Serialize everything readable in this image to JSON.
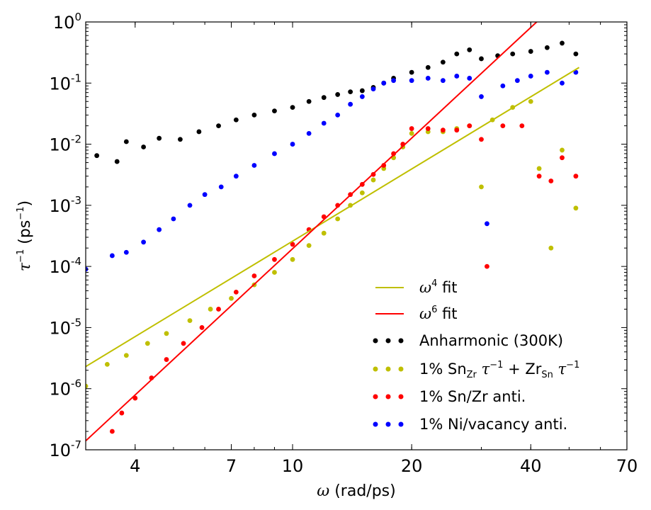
{
  "chart_data": {
    "type": "scatter",
    "xscale": "log",
    "yscale": "log",
    "xlim": [
      3,
      70
    ],
    "ylim": [
      1e-07,
      1
    ],
    "xlabel": "ω (rad/ps)",
    "ylabel": "τ⁻¹ (ps⁻¹)",
    "x_ticks": [
      4,
      7,
      10,
      20,
      40,
      70
    ],
    "x_tick_labels": [
      "4",
      "7",
      "10",
      "20",
      "40",
      "70"
    ],
    "y_ticks": [
      1e-07,
      1e-06,
      1e-05,
      0.0001,
      0.001,
      0.01,
      0.1,
      1
    ],
    "y_tick_labels": [
      {
        "base": "10",
        "exp": "-7"
      },
      {
        "base": "10",
        "exp": "-6"
      },
      {
        "base": "10",
        "exp": "-5"
      },
      {
        "base": "10",
        "exp": "-4"
      },
      {
        "base": "10",
        "exp": "-3"
      },
      {
        "base": "10",
        "exp": "-2"
      },
      {
        "base": "10",
        "exp": "-1"
      },
      {
        "base": "10",
        "exp": "0"
      }
    ],
    "grid": false,
    "legend_position": "lower-right",
    "series": [
      {
        "name": "ω⁴ fit",
        "kind": "line",
        "color": "#bfbf00",
        "x": [
          3.0,
          53.0
        ],
        "y": [
          2.3e-06,
          0.18
        ]
      },
      {
        "name": "ω⁶ fit",
        "kind": "line",
        "color": "#ff0000",
        "x": [
          3.0,
          45.0
        ],
        "y": [
          1.4e-07,
          1.65
        ]
      },
      {
        "name": "Anharmonic (300K)",
        "kind": "scatter",
        "color": "#000000",
        "x": [
          3.2,
          3.6,
          3.8,
          4.2,
          4.6,
          5.2,
          5.8,
          6.5,
          7.2,
          8.0,
          9.0,
          10.0,
          11.0,
          12.0,
          13.0,
          14.0,
          15.0,
          16.0,
          17.0,
          18.0,
          20.0,
          22.0,
          24.0,
          26.0,
          28.0,
          30.0,
          33.0,
          36.0,
          40.0,
          44.0,
          48.0,
          52.0
        ],
        "y": [
          0.0065,
          0.0052,
          0.011,
          0.009,
          0.0125,
          0.012,
          0.016,
          0.02,
          0.025,
          0.03,
          0.035,
          0.04,
          0.05,
          0.058,
          0.065,
          0.072,
          0.075,
          0.085,
          0.1,
          0.12,
          0.15,
          0.18,
          0.22,
          0.3,
          0.35,
          0.25,
          0.28,
          0.3,
          0.33,
          0.38,
          0.45,
          0.3
        ]
      },
      {
        "name": "1% Sn_Zr τ⁻¹ + Zr_Sn τ⁻¹",
        "kind": "scatter",
        "color": "#bfbf00",
        "x": [
          3.0,
          3.4,
          3.8,
          4.3,
          4.8,
          5.5,
          6.2,
          7.0,
          8.0,
          9.0,
          10.0,
          11.0,
          12.0,
          13.0,
          14.0,
          15.0,
          16.0,
          17.0,
          18.0,
          19.0,
          20.0,
          22.0,
          24.0,
          26.0,
          28.0,
          30.0,
          32.0,
          36.0,
          40.0,
          42.0,
          45.0,
          48.0,
          52.0
        ],
        "y": [
          1.1e-06,
          2.5e-06,
          3.5e-06,
          5.5e-06,
          8e-06,
          1.3e-05,
          2e-05,
          3e-05,
          5e-05,
          8e-05,
          0.00013,
          0.00022,
          0.00035,
          0.0006,
          0.001,
          0.0016,
          0.0026,
          0.004,
          0.006,
          0.009,
          0.015,
          0.016,
          0.016,
          0.018,
          0.02,
          0.002,
          0.025,
          0.04,
          0.05,
          0.004,
          0.0002,
          0.008,
          0.0009
        ]
      },
      {
        "name": "1% Sn/Zr anti.",
        "kind": "scatter",
        "color": "#ff0000",
        "x": [
          3.5,
          3.7,
          4.0,
          4.4,
          4.8,
          5.3,
          5.9,
          6.5,
          7.2,
          8.0,
          9.0,
          10.0,
          11.0,
          12.0,
          13.0,
          14.0,
          15.0,
          16.0,
          17.0,
          18.0,
          19.0,
          20.0,
          22.0,
          24.0,
          26.0,
          28.0,
          30.0,
          31.0,
          34.0,
          38.0,
          42.0,
          45.0,
          48.0,
          52.0
        ],
        "y": [
          2e-07,
          4e-07,
          7e-07,
          1.5e-06,
          3e-06,
          5.5e-06,
          1e-05,
          2e-05,
          3.8e-05,
          7e-05,
          0.00013,
          0.00023,
          0.0004,
          0.00065,
          0.001,
          0.0015,
          0.0022,
          0.0032,
          0.0045,
          0.007,
          0.01,
          0.018,
          0.018,
          0.017,
          0.017,
          0.02,
          0.012,
          0.0001,
          0.02,
          0.02,
          0.003,
          0.0025,
          0.006,
          0.003
        ]
      },
      {
        "name": "1% Ni/vacancy anti.",
        "kind": "scatter",
        "color": "#0000ff",
        "x": [
          3.0,
          3.5,
          3.8,
          4.2,
          4.6,
          5.0,
          5.5,
          6.0,
          6.6,
          7.2,
          8.0,
          9.0,
          10.0,
          11.0,
          12.0,
          13.0,
          14.0,
          15.0,
          16.0,
          17.0,
          18.0,
          20.0,
          22.0,
          24.0,
          26.0,
          28.0,
          30.0,
          31.0,
          34.0,
          37.0,
          40.0,
          44.0,
          48.0,
          52.0
        ],
        "y": [
          9e-05,
          0.00015,
          0.00017,
          0.00025,
          0.0004,
          0.0006,
          0.001,
          0.0015,
          0.002,
          0.003,
          0.0045,
          0.007,
          0.01,
          0.015,
          0.022,
          0.03,
          0.045,
          0.06,
          0.08,
          0.1,
          0.11,
          0.11,
          0.12,
          0.11,
          0.13,
          0.12,
          0.06,
          0.0005,
          0.09,
          0.11,
          0.13,
          0.15,
          0.1,
          0.15
        ]
      }
    ],
    "legend": [
      {
        "label": "ω⁴ fit",
        "marker": "line",
        "color": "#bfbf00"
      },
      {
        "label": "ω⁶ fit",
        "marker": "line",
        "color": "#ff0000"
      },
      {
        "label": "Anharmonic (300K)",
        "marker": "dots",
        "color": "#000000"
      },
      {
        "label": "1% Sn_Zr τ⁻¹ + Zr_Sn τ⁻¹",
        "marker": "dots",
        "color": "#bfbf00"
      },
      {
        "label": "1% Sn/Zr anti.",
        "marker": "dots",
        "color": "#ff0000"
      },
      {
        "label": "1% Ni/vacancy anti.",
        "marker": "dots",
        "color": "#0000ff"
      }
    ]
  }
}
